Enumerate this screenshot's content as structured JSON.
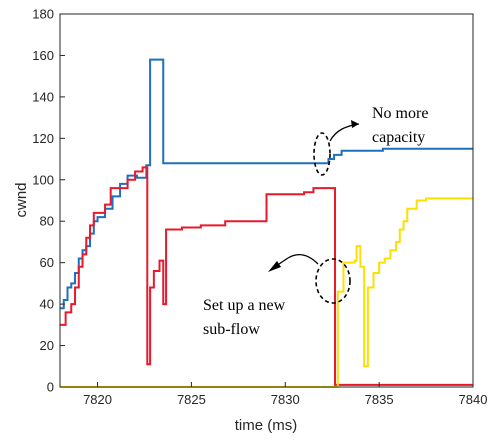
{
  "chart_data": {
    "type": "line",
    "title": "",
    "xlabel": "time (ms)",
    "ylabel": "cwnd",
    "xlim": [
      7818,
      7840
    ],
    "ylim": [
      0,
      180
    ],
    "x_ticks": [
      7820,
      7825,
      7830,
      7835,
      7840
    ],
    "y_ticks": [
      0,
      20,
      40,
      60,
      80,
      100,
      120,
      140,
      160,
      180
    ],
    "grid": false,
    "series": [
      {
        "color": "#1f6fc0",
        "step": true,
        "points": [
          [
            7818.0,
            38
          ],
          [
            7818.2,
            42
          ],
          [
            7818.4,
            48
          ],
          [
            7818.6,
            50
          ],
          [
            7818.8,
            55
          ],
          [
            7819.0,
            62
          ],
          [
            7819.2,
            66
          ],
          [
            7819.4,
            68
          ],
          [
            7819.6,
            74
          ],
          [
            7819.8,
            80
          ],
          [
            7820.0,
            82
          ],
          [
            7820.4,
            86
          ],
          [
            7820.8,
            92
          ],
          [
            7821.2,
            98
          ],
          [
            7821.6,
            102
          ],
          [
            7822.1,
            101
          ],
          [
            7822.6,
            107
          ],
          [
            7822.8,
            158
          ],
          [
            7823.5,
            108
          ],
          [
            7832.0,
            108
          ],
          [
            7832.3,
            110
          ],
          [
            7832.6,
            112
          ],
          [
            7833.0,
            114
          ],
          [
            7835.2,
            115
          ],
          [
            7840.0,
            115
          ]
        ]
      },
      {
        "color": "#e8192c",
        "step": true,
        "points": [
          [
            7818.0,
            30
          ],
          [
            7818.3,
            36
          ],
          [
            7818.6,
            40
          ],
          [
            7818.8,
            48
          ],
          [
            7819.0,
            58
          ],
          [
            7819.2,
            64
          ],
          [
            7819.4,
            72
          ],
          [
            7819.6,
            78
          ],
          [
            7819.8,
            84
          ],
          [
            7820.4,
            88
          ],
          [
            7820.7,
            96
          ],
          [
            7821.6,
            100
          ],
          [
            7822.0,
            104
          ],
          [
            7822.4,
            106
          ],
          [
            7822.6,
            106
          ],
          [
            7822.65,
            11
          ],
          [
            7822.8,
            48
          ],
          [
            7823.0,
            56
          ],
          [
            7823.3,
            61
          ],
          [
            7823.5,
            40
          ],
          [
            7823.65,
            76
          ],
          [
            7824.5,
            77
          ],
          [
            7825.5,
            78
          ],
          [
            7826.8,
            80
          ],
          [
            7828.0,
            80
          ],
          [
            7829.0,
            93
          ],
          [
            7831.0,
            94
          ],
          [
            7831.5,
            96
          ],
          [
            7832.6,
            96
          ],
          [
            7832.65,
            1
          ],
          [
            7840.0,
            1
          ]
        ]
      },
      {
        "color": "#ffdf00",
        "step": true,
        "points": [
          [
            7818.0,
            0
          ],
          [
            7832.7,
            0
          ],
          [
            7832.8,
            46
          ],
          [
            7833.1,
            60
          ],
          [
            7833.7,
            61
          ],
          [
            7833.8,
            68
          ],
          [
            7834.0,
            58
          ],
          [
            7834.2,
            10
          ],
          [
            7834.4,
            48
          ],
          [
            7834.7,
            55
          ],
          [
            7835.0,
            60
          ],
          [
            7835.3,
            62
          ],
          [
            7835.6,
            66
          ],
          [
            7835.9,
            70
          ],
          [
            7836.1,
            76
          ],
          [
            7836.3,
            80
          ],
          [
            7836.5,
            86
          ],
          [
            7837.0,
            90
          ],
          [
            7837.5,
            91
          ],
          [
            7840.0,
            91
          ]
        ]
      }
    ],
    "annotations": [
      {
        "lines": [
          "No more",
          "capacity"
        ]
      },
      {
        "lines": [
          "Set up a new",
          "sub-flow"
        ]
      }
    ]
  }
}
